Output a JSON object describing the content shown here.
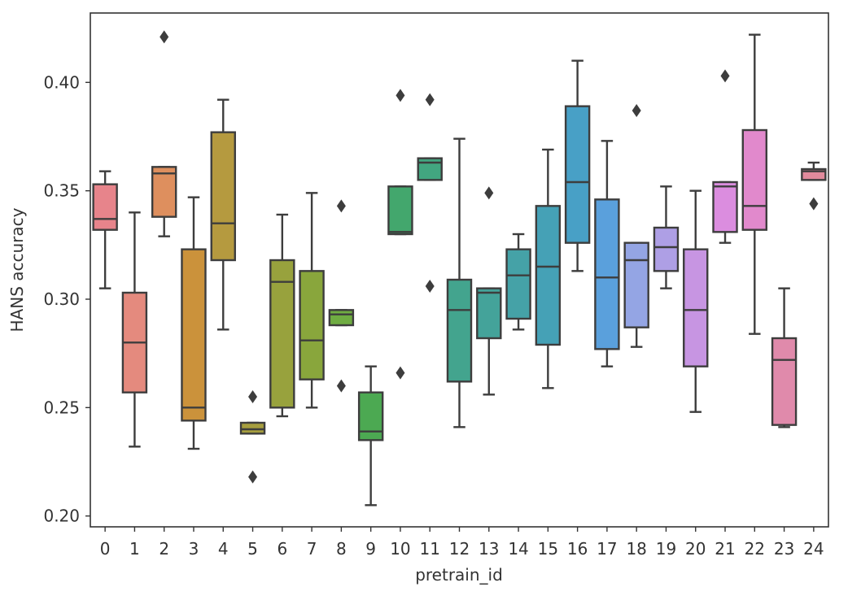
{
  "chart_data": {
    "type": "box",
    "xlabel": "pretrain_id",
    "ylabel": "HANS accuracy",
    "ylim": [
      0.195,
      0.432
    ],
    "yticks": [
      {
        "value": 0.2,
        "label": "0.20"
      },
      {
        "value": 0.25,
        "label": "0.25"
      },
      {
        "value": 0.3,
        "label": "0.30"
      },
      {
        "value": 0.35,
        "label": "0.35"
      },
      {
        "value": 0.4,
        "label": "0.40"
      }
    ],
    "grid": false,
    "categories": [
      "0",
      "1",
      "2",
      "3",
      "4",
      "5",
      "6",
      "7",
      "8",
      "9",
      "10",
      "11",
      "12",
      "13",
      "14",
      "15",
      "16",
      "17",
      "18",
      "19",
      "20",
      "21",
      "22",
      "23",
      "24"
    ],
    "boxes": [
      {
        "whislo": 0.305,
        "q1": 0.332,
        "med": 0.337,
        "q3": 0.353,
        "whishi": 0.359,
        "fliers": [],
        "color": "#e7848b"
      },
      {
        "whislo": 0.232,
        "q1": 0.257,
        "med": 0.28,
        "q3": 0.303,
        "whishi": 0.34,
        "fliers": [],
        "color": "#e48a7e"
      },
      {
        "whislo": 0.329,
        "q1": 0.338,
        "med": 0.358,
        "q3": 0.361,
        "whishi": 0.361,
        "fliers": [
          0.421
        ],
        "color": "#de8f5e"
      },
      {
        "whislo": 0.231,
        "q1": 0.244,
        "med": 0.25,
        "q3": 0.323,
        "whishi": 0.347,
        "fliers": [],
        "color": "#cb923b"
      },
      {
        "whislo": 0.286,
        "q1": 0.318,
        "med": 0.335,
        "q3": 0.377,
        "whishi": 0.392,
        "fliers": [],
        "color": "#b59a3f"
      },
      {
        "whislo": 0.238,
        "q1": 0.238,
        "med": 0.24,
        "q3": 0.243,
        "whishi": 0.243,
        "fliers": [
          0.218,
          0.255
        ],
        "color": "#a69e3f"
      },
      {
        "whislo": 0.246,
        "q1": 0.25,
        "med": 0.308,
        "q3": 0.318,
        "whishi": 0.339,
        "fliers": [],
        "color": "#98a23d"
      },
      {
        "whislo": 0.25,
        "q1": 0.263,
        "med": 0.281,
        "q3": 0.313,
        "whishi": 0.349,
        "fliers": [],
        "color": "#89a63c"
      },
      {
        "whislo": 0.288,
        "q1": 0.288,
        "med": 0.293,
        "q3": 0.295,
        "whishi": 0.295,
        "fliers": [
          0.26,
          0.343
        ],
        "color": "#6fac42"
      },
      {
        "whislo": 0.205,
        "q1": 0.235,
        "med": 0.239,
        "q3": 0.257,
        "whishi": 0.269,
        "fliers": [],
        "color": "#4ca952"
      },
      {
        "whislo": 0.33,
        "q1": 0.33,
        "med": 0.331,
        "q3": 0.352,
        "whishi": 0.352,
        "fliers": [
          0.266,
          0.394
        ],
        "color": "#43a76d"
      },
      {
        "whislo": 0.355,
        "q1": 0.355,
        "med": 0.363,
        "q3": 0.365,
        "whishi": 0.365,
        "fliers": [
          0.306,
          0.392
        ],
        "color": "#42a680"
      },
      {
        "whislo": 0.241,
        "q1": 0.262,
        "med": 0.295,
        "q3": 0.309,
        "whishi": 0.374,
        "fliers": [],
        "color": "#43a48e"
      },
      {
        "whislo": 0.256,
        "q1": 0.282,
        "med": 0.303,
        "q3": 0.305,
        "whishi": 0.305,
        "fliers": [
          0.349
        ],
        "color": "#44a39a"
      },
      {
        "whislo": 0.286,
        "q1": 0.291,
        "med": 0.311,
        "q3": 0.323,
        "whishi": 0.33,
        "fliers": [],
        "color": "#45a2a7"
      },
      {
        "whislo": 0.259,
        "q1": 0.279,
        "med": 0.315,
        "q3": 0.343,
        "whishi": 0.369,
        "fliers": [],
        "color": "#45a1b6"
      },
      {
        "whislo": 0.313,
        "q1": 0.326,
        "med": 0.354,
        "q3": 0.389,
        "whishi": 0.41,
        "fliers": [],
        "color": "#48a0c6"
      },
      {
        "whislo": 0.269,
        "q1": 0.277,
        "med": 0.31,
        "q3": 0.346,
        "whishi": 0.373,
        "fliers": [],
        "color": "#5aa0dc"
      },
      {
        "whislo": 0.278,
        "q1": 0.287,
        "med": 0.318,
        "q3": 0.326,
        "whishi": 0.326,
        "fliers": [
          0.387
        ],
        "color": "#94a5e4"
      },
      {
        "whislo": 0.305,
        "q1": 0.313,
        "med": 0.324,
        "q3": 0.333,
        "whishi": 0.352,
        "fliers": [],
        "color": "#ae9fe5"
      },
      {
        "whislo": 0.248,
        "q1": 0.269,
        "med": 0.295,
        "q3": 0.323,
        "whishi": 0.35,
        "fliers": [],
        "color": "#c795e2"
      },
      {
        "whislo": 0.326,
        "q1": 0.331,
        "med": 0.352,
        "q3": 0.354,
        "whishi": 0.354,
        "fliers": [
          0.403
        ],
        "color": "#db8ddf"
      },
      {
        "whislo": 0.284,
        "q1": 0.332,
        "med": 0.343,
        "q3": 0.378,
        "whishi": 0.422,
        "fliers": [],
        "color": "#e189cc"
      },
      {
        "whislo": 0.241,
        "q1": 0.242,
        "med": 0.272,
        "q3": 0.282,
        "whishi": 0.305,
        "fliers": [],
        "color": "#e08aab"
      },
      {
        "whislo": 0.355,
        "q1": 0.355,
        "med": 0.359,
        "q3": 0.36,
        "whishi": 0.363,
        "fliers": [
          0.344
        ],
        "color": "#e18a9c"
      }
    ]
  }
}
